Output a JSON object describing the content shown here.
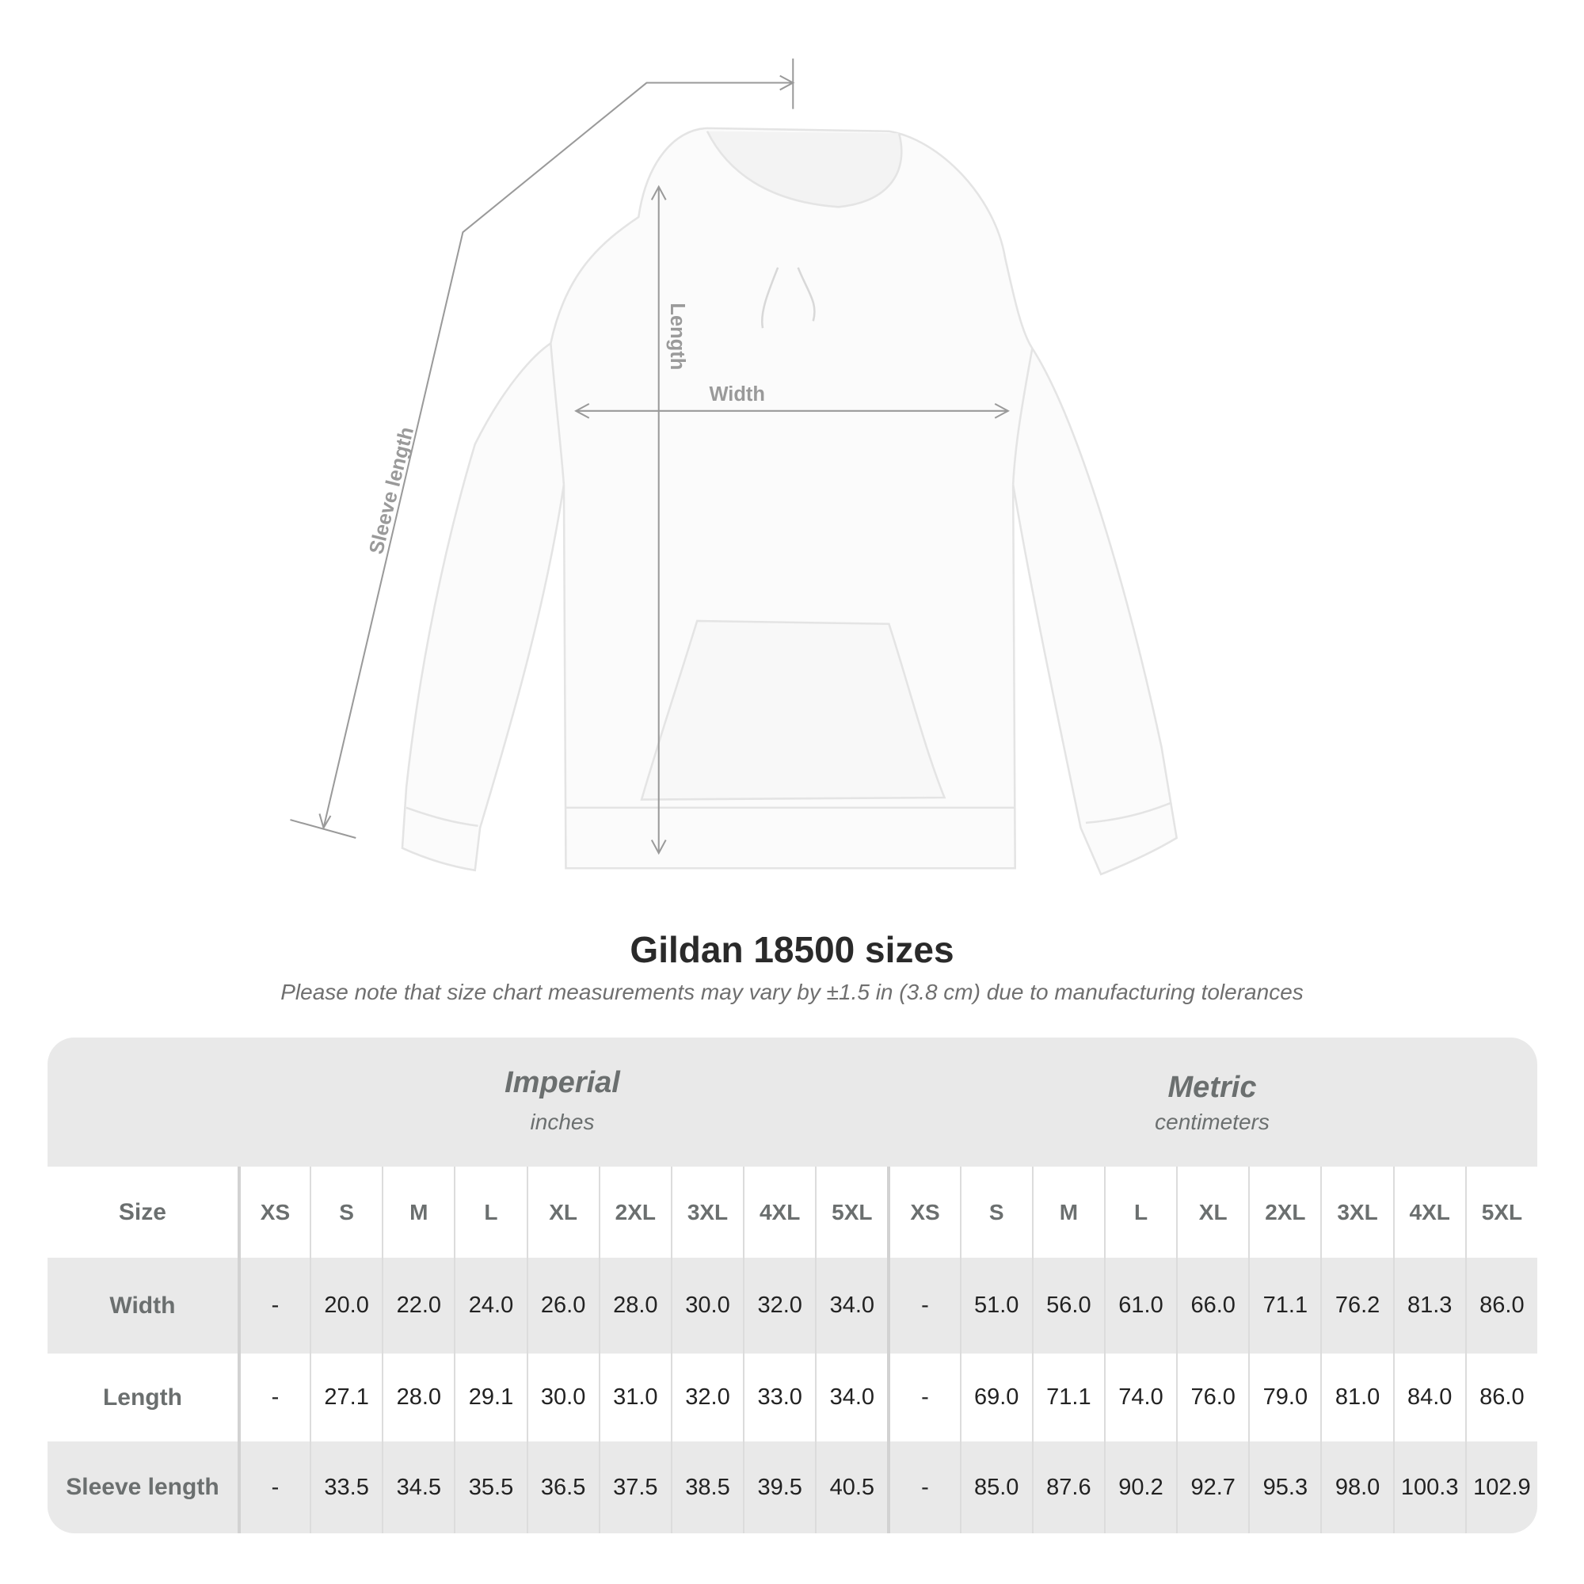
{
  "diagram": {
    "labels": {
      "sleeve": "Sleeve length",
      "length": "Length",
      "width": "Width"
    }
  },
  "title": "Gildan 18500 sizes",
  "note": "Please note that size chart measurements may vary by ±1.5 in (3.8 cm) due to manufacturing tolerances",
  "table": {
    "imperial": {
      "name": "Imperial",
      "unit": "inches"
    },
    "metric": {
      "name": "Metric",
      "unit": "centimeters"
    },
    "size_label": "Size",
    "sizes": [
      "XS",
      "S",
      "M",
      "L",
      "XL",
      "2XL",
      "3XL",
      "4XL",
      "5XL"
    ],
    "rows": [
      {
        "label": "Width",
        "imperial": [
          "-",
          "20.0",
          "22.0",
          "24.0",
          "26.0",
          "28.0",
          "30.0",
          "32.0",
          "34.0"
        ],
        "metric": [
          "-",
          "51.0",
          "56.0",
          "61.0",
          "66.0",
          "71.1",
          "76.2",
          "81.3",
          "86.0"
        ]
      },
      {
        "label": "Length",
        "imperial": [
          "-",
          "27.1",
          "28.0",
          "29.1",
          "30.0",
          "31.0",
          "32.0",
          "33.0",
          "34.0"
        ],
        "metric": [
          "-",
          "69.0",
          "71.1",
          "74.0",
          "76.0",
          "79.0",
          "81.0",
          "84.0",
          "86.0"
        ]
      },
      {
        "label": "Sleeve length",
        "imperial": [
          "-",
          "33.5",
          "34.5",
          "35.5",
          "36.5",
          "37.5",
          "38.5",
          "39.5",
          "40.5"
        ],
        "metric": [
          "-",
          "85.0",
          "87.6",
          "90.2",
          "92.7",
          "95.3",
          "98.0",
          "100.3",
          "102.9"
        ]
      }
    ]
  },
  "colors": {
    "band": "#e9e9e9",
    "header_text": "#6b6f6f",
    "measure_line": "#9a9a9a"
  }
}
